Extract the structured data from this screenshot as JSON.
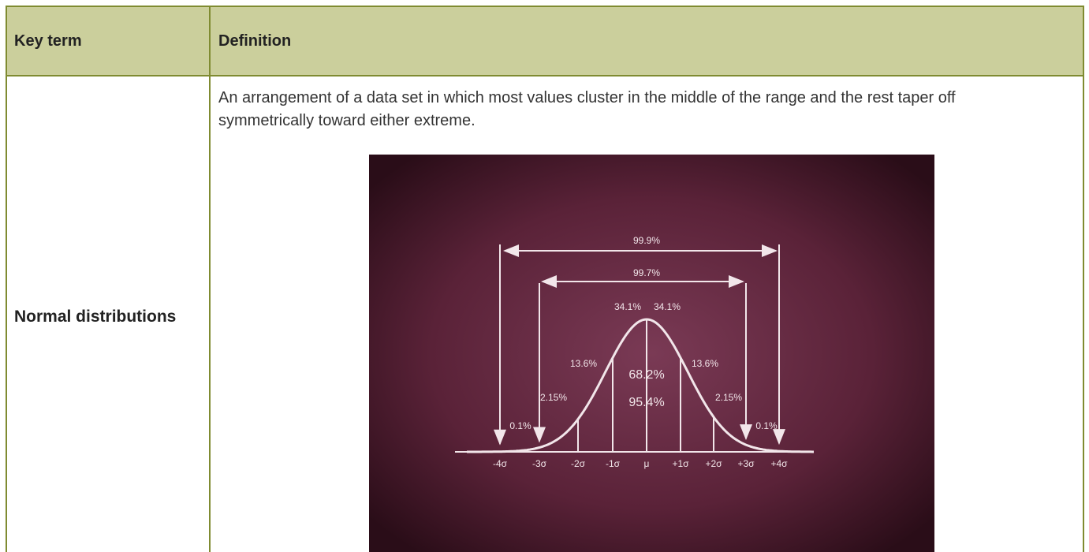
{
  "table": {
    "header": [
      "Key term",
      "Definition"
    ],
    "rows": [
      {
        "term": "Normal distributions",
        "definition": "An arrangement of a data set in which most values cluster in the middle of the range and the rest taper off symmetrically toward either extreme.",
        "figure": {
          "range_labels": [
            "99.9%",
            "99.7%"
          ],
          "center_labels": [
            "34.1%",
            "34.1%",
            "68.2%",
            "95.4%"
          ],
          "side_labels": [
            "13.6%",
            "13.6%",
            "2.15%",
            "2.15%",
            "0.1%",
            "0.1%"
          ],
          "axis_labels": [
            "-4σ",
            "-3σ",
            "-2σ",
            "-1σ",
            "μ",
            "+1σ",
            "+2σ",
            "+3σ",
            "+4σ"
          ]
        }
      }
    ]
  }
}
